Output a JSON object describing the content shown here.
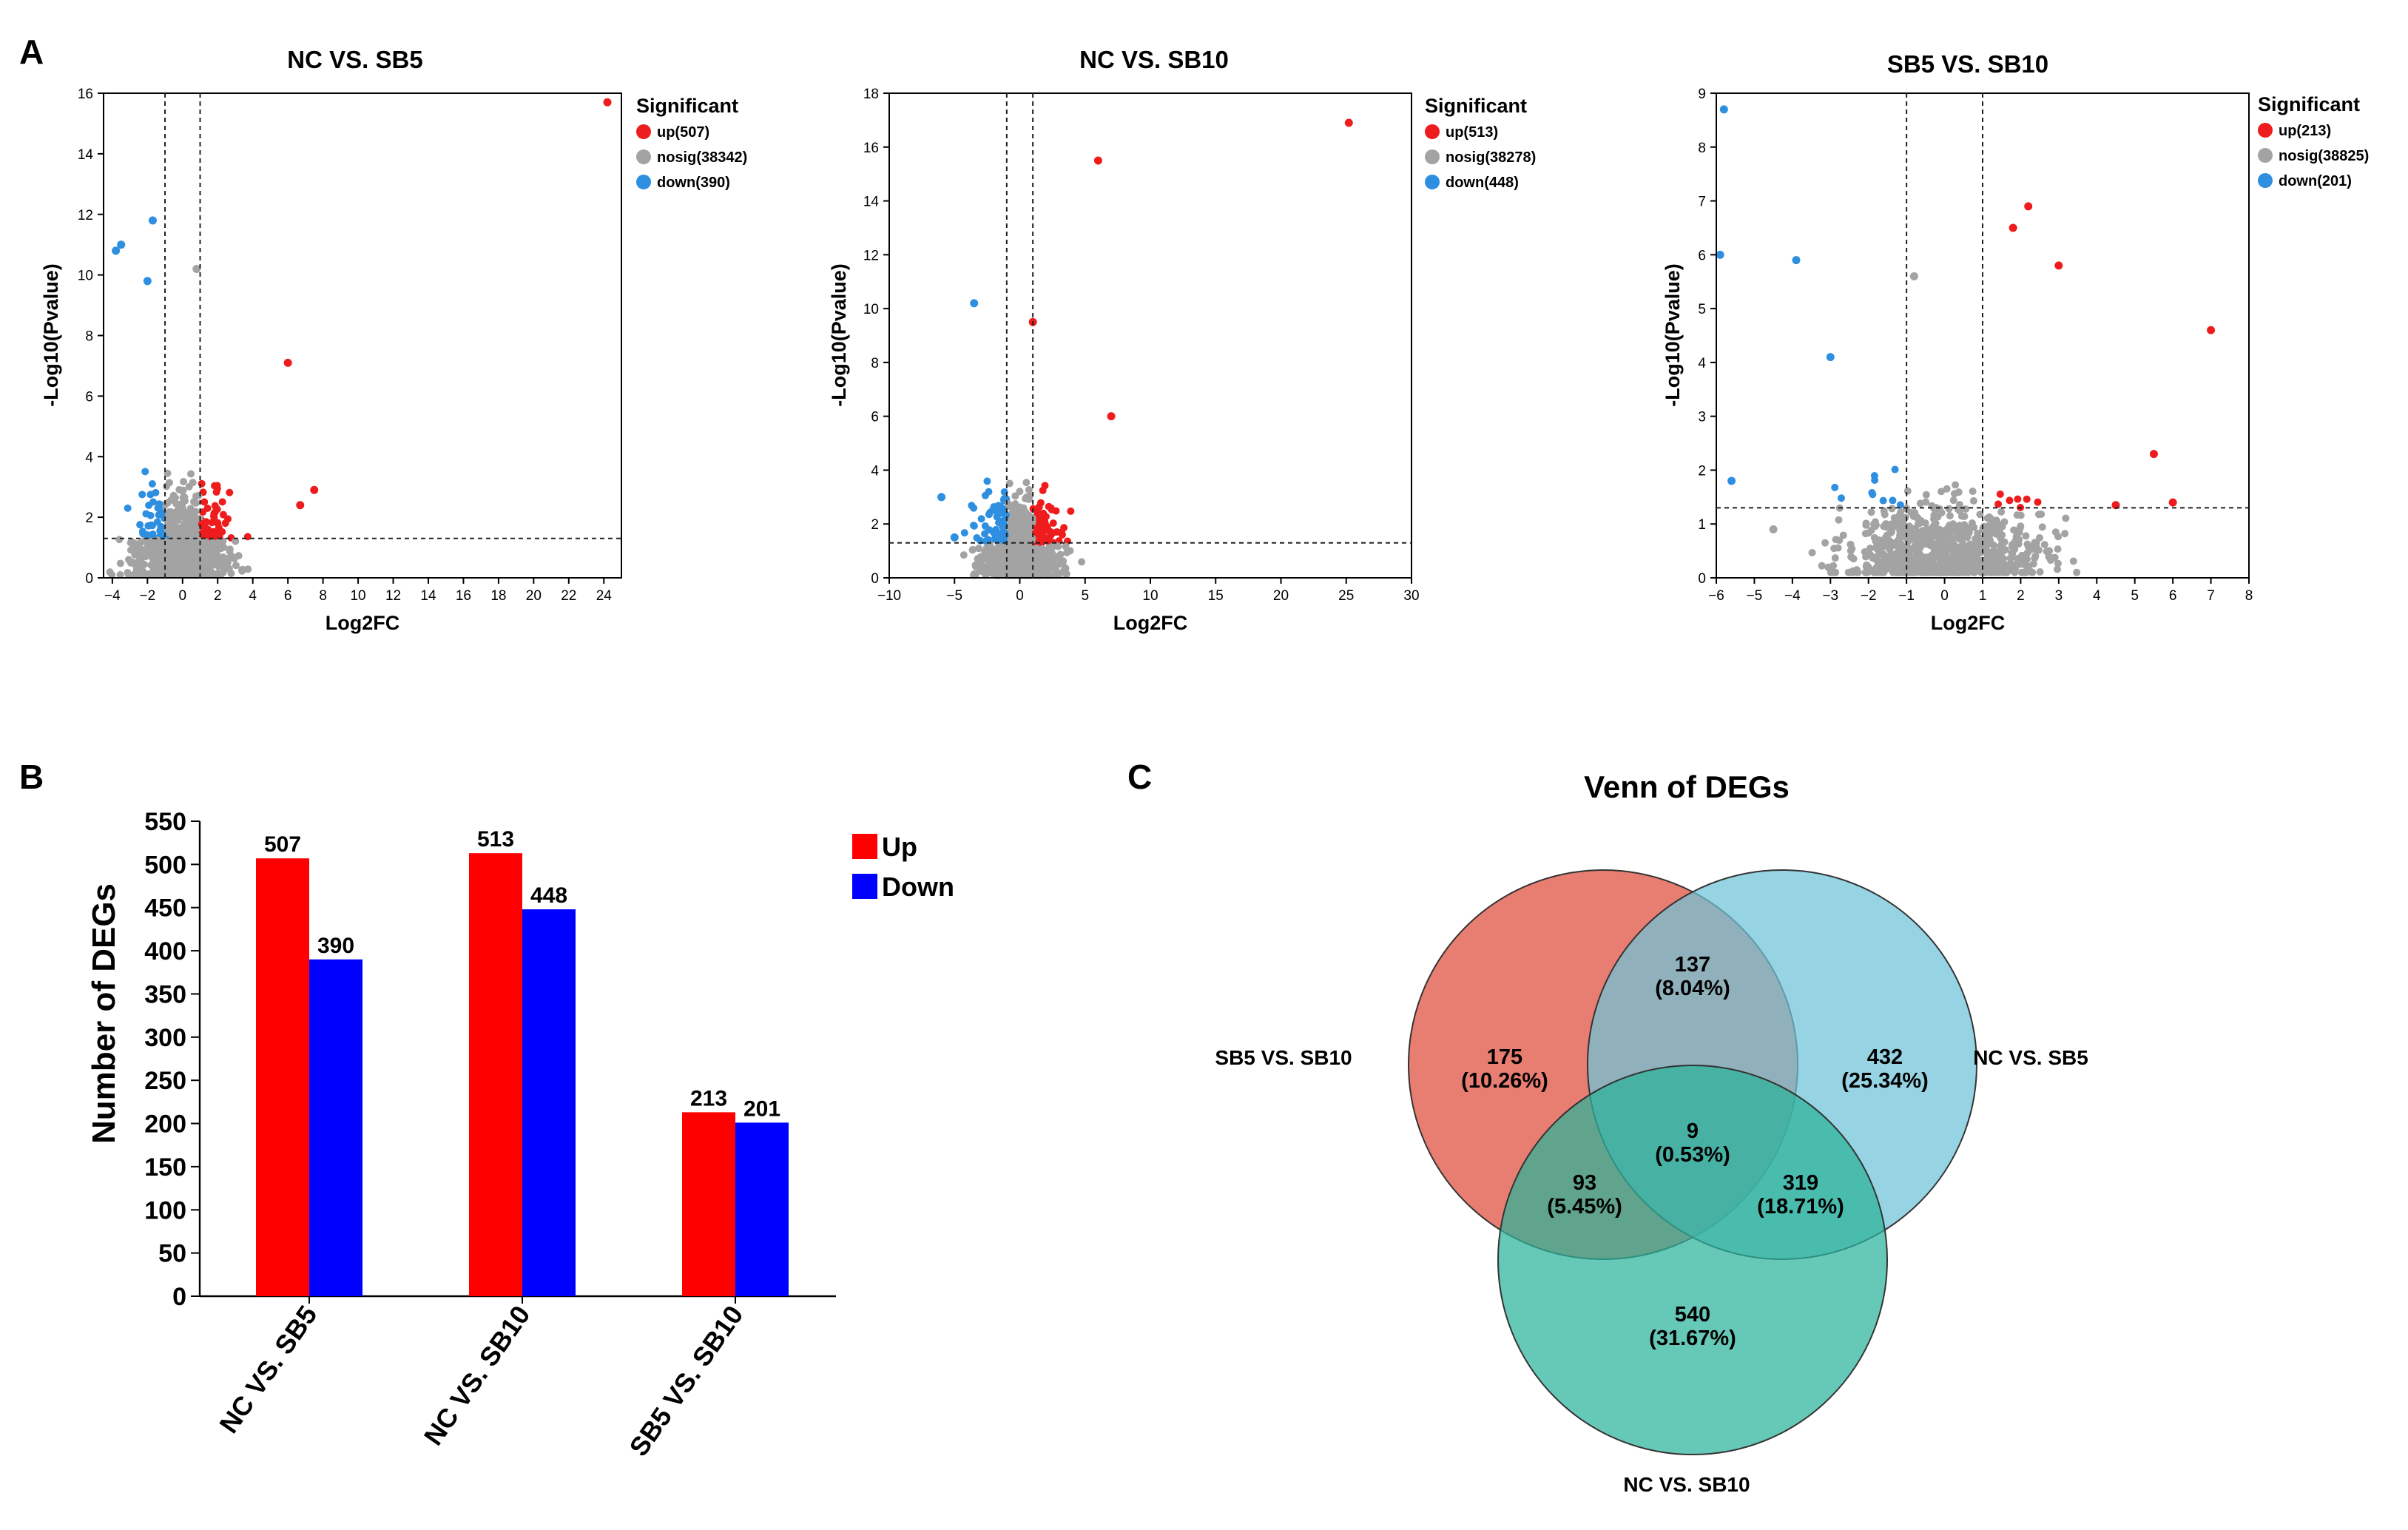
{
  "panels": {
    "a": "A",
    "b": "B",
    "c": "C"
  },
  "chart_data": [
    {
      "type": "scatter",
      "title": "NC VS. SB5",
      "xlabel": "Log2FC",
      "ylabel": "-Log10(Pvalue)",
      "xlim": [
        -4.5,
        25
      ],
      "ylim": [
        0,
        16
      ],
      "xticks": [
        -4,
        -2,
        0,
        2,
        4,
        6,
        8,
        10,
        12,
        14,
        16,
        18,
        20,
        22,
        24
      ],
      "yticks": [
        0,
        2,
        4,
        6,
        8,
        10,
        12,
        14,
        16
      ],
      "fc_threshold": 1,
      "p_threshold": 1.3,
      "legend_title": "Significant",
      "legend": [
        {
          "name": "up",
          "count": 507,
          "label": "up(507)",
          "color": "#ee1c1c"
        },
        {
          "name": "nosig",
          "count": 38342,
          "label": "nosig(38342)",
          "color": "#a3a3a3"
        },
        {
          "name": "down",
          "count": 390,
          "label": "down(390)",
          "color": "#2e8fe0"
        }
      ],
      "notable_points": [
        {
          "x": 24.2,
          "y": 15.7,
          "group": "up"
        },
        {
          "x": 6.0,
          "y": 7.1,
          "group": "up"
        },
        {
          "x": 7.5,
          "y": 2.9,
          "group": "up"
        },
        {
          "x": 6.7,
          "y": 2.4,
          "group": "up"
        },
        {
          "x": -3.8,
          "y": 10.8,
          "group": "down"
        },
        {
          "x": -1.7,
          "y": 11.8,
          "group": "down"
        },
        {
          "x": -3.5,
          "y": 11.0,
          "group": "down"
        },
        {
          "x": -2.0,
          "y": 9.8,
          "group": "down"
        },
        {
          "x": 0.8,
          "y": 10.2,
          "group": "nosig"
        }
      ]
    },
    {
      "type": "scatter",
      "title": "NC VS. SB10",
      "xlabel": "Log2FC",
      "ylabel": "-Log10(Pvalue)",
      "xlim": [
        -10,
        30
      ],
      "ylim": [
        0,
        18
      ],
      "xticks": [
        -10,
        -5,
        0,
        5,
        10,
        15,
        20,
        25,
        30
      ],
      "yticks": [
        0,
        2,
        4,
        6,
        8,
        10,
        12,
        14,
        16,
        18
      ],
      "fc_threshold": 1,
      "p_threshold": 1.3,
      "legend_title": "Significant",
      "legend": [
        {
          "name": "up",
          "count": 513,
          "label": "up(513)",
          "color": "#ee1c1c"
        },
        {
          "name": "nosig",
          "count": 38278,
          "label": "nosig(38278)",
          "color": "#a3a3a3"
        },
        {
          "name": "down",
          "count": 448,
          "label": "down(448)",
          "color": "#2e8fe0"
        }
      ],
      "notable_points": [
        {
          "x": 25.2,
          "y": 16.9,
          "group": "up"
        },
        {
          "x": 6.0,
          "y": 15.5,
          "group": "up"
        },
        {
          "x": 1.0,
          "y": 9.5,
          "group": "up"
        },
        {
          "x": 7.0,
          "y": 6.0,
          "group": "up"
        },
        {
          "x": -3.5,
          "y": 10.2,
          "group": "down"
        },
        {
          "x": -5.0,
          "y": 1.5,
          "group": "down"
        },
        {
          "x": -6.0,
          "y": 3.0,
          "group": "down"
        }
      ]
    },
    {
      "type": "scatter",
      "title": "SB5 VS. SB10",
      "xlabel": "Log2FC",
      "ylabel": "-Log10(Pvalue)",
      "xlim": [
        -6,
        8
      ],
      "ylim": [
        0,
        9
      ],
      "xticks": [
        -6,
        -5,
        -4,
        -3,
        -2,
        -1,
        0,
        1,
        2,
        3,
        4,
        5,
        6,
        7,
        8
      ],
      "yticks": [
        0,
        1,
        2,
        3,
        4,
        5,
        6,
        7,
        8,
        9
      ],
      "fc_threshold": 1,
      "p_threshold": 1.3,
      "legend_title": "Significant",
      "legend": [
        {
          "name": "up",
          "count": 213,
          "label": "up(213)",
          "color": "#ee1c1c"
        },
        {
          "name": "nosig",
          "count": 38825,
          "label": "nosig(38825)",
          "color": "#a3a3a3"
        },
        {
          "name": "down",
          "count": 201,
          "label": "down(201)",
          "color": "#2e8fe0"
        }
      ],
      "notable_points": [
        {
          "x": -5.8,
          "y": 8.7,
          "group": "down"
        },
        {
          "x": -5.9,
          "y": 6.0,
          "group": "down"
        },
        {
          "x": -3.9,
          "y": 5.9,
          "group": "down"
        },
        {
          "x": -5.6,
          "y": 1.8,
          "group": "down"
        },
        {
          "x": -3.0,
          "y": 4.1,
          "group": "down"
        },
        {
          "x": 7.0,
          "y": 4.6,
          "group": "up"
        },
        {
          "x": 2.2,
          "y": 6.9,
          "group": "up"
        },
        {
          "x": 1.8,
          "y": 6.5,
          "group": "up"
        },
        {
          "x": 3.0,
          "y": 5.8,
          "group": "up"
        },
        {
          "x": 5.5,
          "y": 2.3,
          "group": "up"
        },
        {
          "x": 6.0,
          "y": 1.4,
          "group": "up"
        },
        {
          "x": 4.5,
          "y": 1.35,
          "group": "up"
        },
        {
          "x": -0.8,
          "y": 5.6,
          "group": "nosig"
        },
        {
          "x": -4.5,
          "y": 0.9,
          "group": "nosig"
        }
      ]
    },
    {
      "type": "bar",
      "ylabel": "Number of DEGs",
      "categories": [
        "NC VS. SB5",
        "NC VS. SB10",
        "SB5 VS. SB10"
      ],
      "series": [
        {
          "name": "Up",
          "values": [
            507,
            513,
            213
          ],
          "color": "#ff0000"
        },
        {
          "name": "Down",
          "values": [
            390,
            448,
            201
          ],
          "color": "#0000ff"
        }
      ],
      "ylim": [
        0,
        550
      ],
      "yticks": [
        0,
        50,
        100,
        150,
        200,
        250,
        300,
        350,
        400,
        450,
        500,
        550
      ],
      "legend": [
        "Up",
        "Down"
      ]
    },
    {
      "type": "venn",
      "title": "Venn of DEGs",
      "sets": [
        {
          "name": "SB5 VS. SB10",
          "color": "#e56b5d"
        },
        {
          "name": "NC VS. SB5",
          "color": "#6ec3d8"
        },
        {
          "name": "NC VS. SB10",
          "color": "#2bb39a"
        }
      ],
      "regions": [
        {
          "key": "sb5sb10_only",
          "count": "175",
          "pct": "(10.26%)"
        },
        {
          "key": "ncsb5_only",
          "count": "432",
          "pct": "(25.34%)"
        },
        {
          "key": "ncsb10_only",
          "count": "540",
          "pct": "(31.67%)"
        },
        {
          "key": "sb5sb10_ncsb5",
          "count": "137",
          "pct": "(8.04%)"
        },
        {
          "key": "sb5sb10_ncsb10",
          "count": "93",
          "pct": "(5.45%)"
        },
        {
          "key": "ncsb5_ncsb10",
          "count": "319",
          "pct": "(18.71%)"
        },
        {
          "key": "all",
          "count": "9",
          "pct": "(0.53%)"
        }
      ]
    }
  ]
}
